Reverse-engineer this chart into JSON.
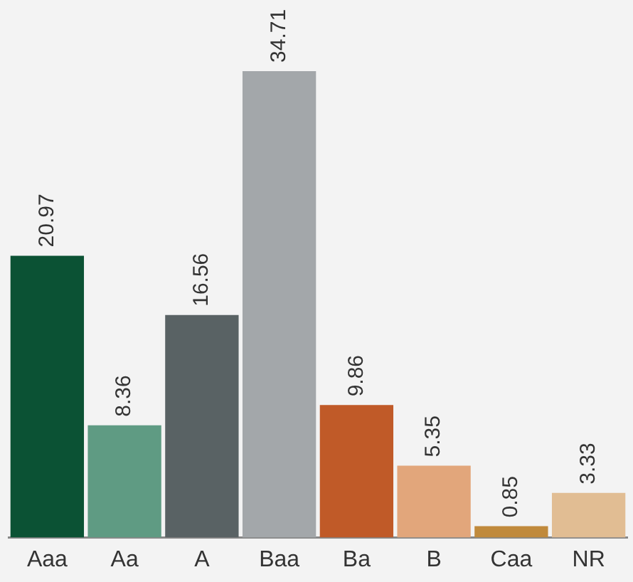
{
  "chart_data": {
    "type": "bar",
    "categories": [
      "Aaa",
      "Aa",
      "A",
      "Baa",
      "Ba",
      "B",
      "Caa",
      "NR"
    ],
    "values": [
      20.97,
      8.36,
      16.56,
      34.71,
      9.86,
      5.35,
      0.85,
      3.33
    ],
    "colors": [
      "#0b5234",
      "#5f9b83",
      "#596264",
      "#a3a7aa",
      "#c05a28",
      "#e2a67b",
      "#c08a3c",
      "#e1bd93"
    ],
    "data_labels": true,
    "grid": false,
    "legend": false
  }
}
